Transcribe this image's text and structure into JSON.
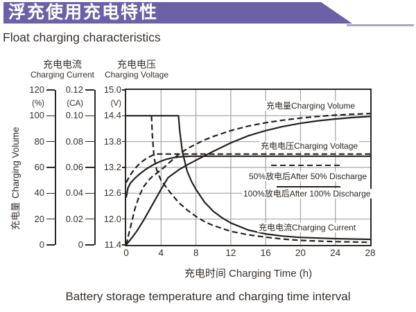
{
  "page": {
    "title_cn": "浮充使用充电特性",
    "title_en": "Float charging characteristics",
    "caption": "Battery storage temperature and charging time interval"
  },
  "colors": {
    "banner": "#6c61a6",
    "banner_underline": "#a8a1cf",
    "curve": "#231f1c",
    "grid": "#a3a3a3",
    "plot_border": "#2b2620",
    "text": "#352f2b"
  },
  "chart_data": {
    "type": "line",
    "title": "浮充使用充电特性 Float charging characteristics",
    "x_axis": {
      "label": "充电时间 Charging Time (h)",
      "min": 0,
      "max": 28,
      "ticks": [
        "0",
        "4",
        "8",
        "12",
        "16",
        "20",
        "24",
        "28"
      ]
    },
    "y_axes": [
      {
        "id": "volume",
        "title_cn": "充电量",
        "title_en": "Charging Volume",
        "unit": "(%)",
        "min": 0,
        "max": 120,
        "ticks": [
          "120",
          "100",
          "80",
          "60",
          "40",
          "20",
          "0"
        ]
      },
      {
        "id": "current",
        "title_cn": "充电电流",
        "title_en": "Charging Current",
        "unit": "(CA)",
        "min": 0,
        "max": 0.12,
        "ticks": [
          "0.12",
          "0.10",
          "0.08",
          "0.06",
          "0.04",
          "0.02",
          "0"
        ]
      },
      {
        "id": "voltage",
        "title_cn": "充电电压",
        "title_en": "Charging Voltage",
        "unit": "(V)",
        "min": 11.4,
        "max": 15.0,
        "ticks": [
          "15.0",
          "14.4",
          "13.8",
          "13.2",
          "12.6",
          "12.0",
          "11.4"
        ]
      }
    ],
    "labels": {
      "charging_volume": "充电量Charging Volume",
      "charging_voltage": "充电电压Charging Voltage",
      "after_50": "50%放电后After 50% Discharge",
      "after_100": "100%放电后After 100% Discharge",
      "charging_current": "充电电流Charging Current"
    },
    "legend_note": "dashed = after 50% discharge, solid = after 100% discharge",
    "series": [
      {
        "name": "charging-volume-after-50-discharge",
        "axis": "volume",
        "style": "dashed",
        "points": [
          [
            0,
            0
          ],
          [
            0.5,
            14
          ],
          [
            1,
            28
          ],
          [
            1.5,
            38
          ],
          [
            2,
            45
          ],
          [
            2.5,
            49.5
          ],
          [
            3,
            53
          ],
          [
            4,
            58
          ],
          [
            5,
            64
          ],
          [
            6,
            70
          ],
          [
            7,
            74.5
          ],
          [
            8,
            78
          ],
          [
            9,
            81.3
          ],
          [
            10,
            84
          ],
          [
            12,
            88.5
          ],
          [
            14,
            92
          ],
          [
            16,
            94.6
          ],
          [
            18,
            96.6
          ],
          [
            20,
            98.2
          ],
          [
            22,
            99.5
          ],
          [
            24,
            100.5
          ],
          [
            26,
            101.2
          ],
          [
            28,
            101.7
          ]
        ]
      },
      {
        "name": "charging-volume-after-100-discharge",
        "axis": "volume",
        "style": "solid",
        "points": [
          [
            0,
            0
          ],
          [
            0.6,
            5
          ],
          [
            1.2,
            10.5
          ],
          [
            2,
            19
          ],
          [
            3,
            31
          ],
          [
            4,
            43
          ],
          [
            4.8,
            52
          ],
          [
            6,
            58
          ],
          [
            7,
            62
          ],
          [
            8,
            65.5
          ],
          [
            9,
            69
          ],
          [
            10,
            72.5
          ],
          [
            12,
            79
          ],
          [
            14,
            84.5
          ],
          [
            16,
            88.5
          ],
          [
            18,
            91.7
          ],
          [
            20,
            94.2
          ],
          [
            22,
            96.1
          ],
          [
            24,
            97.5
          ],
          [
            26,
            98.6
          ],
          [
            28,
            99.5
          ]
        ]
      },
      {
        "name": "charging-voltage-after-50-discharge",
        "axis": "voltage",
        "style": "dashed",
        "points": [
          [
            0,
            12.85
          ],
          [
            0.4,
            13.0
          ],
          [
            0.8,
            13.12
          ],
          [
            1.3,
            13.24
          ],
          [
            1.8,
            13.33
          ],
          [
            2.4,
            13.42
          ],
          [
            3,
            13.48
          ],
          [
            3.6,
            13.51
          ],
          [
            28,
            13.51
          ]
        ]
      },
      {
        "name": "charging-voltage-after-100-discharge",
        "axis": "voltage",
        "style": "solid",
        "points": [
          [
            0,
            12.5
          ],
          [
            0.2,
            12.72
          ],
          [
            0.5,
            12.84
          ],
          [
            1,
            12.95
          ],
          [
            1.5,
            13.04
          ],
          [
            2.2,
            13.15
          ],
          [
            3,
            13.25
          ],
          [
            3.8,
            13.33
          ],
          [
            4.6,
            13.39
          ],
          [
            5.5,
            13.43
          ],
          [
            6.5,
            13.45
          ],
          [
            7.5,
            13.46
          ],
          [
            28,
            13.46
          ]
        ]
      },
      {
        "name": "charging-current-after-50-discharge",
        "axis": "current",
        "style": "dashed",
        "points": [
          [
            2.9,
            0.1
          ],
          [
            3.0,
            0.085
          ],
          [
            3.2,
            0.068
          ],
          [
            3.5,
            0.058
          ],
          [
            4,
            0.05
          ],
          [
            4.5,
            0.0455
          ],
          [
            5,
            0.041
          ],
          [
            6,
            0.033
          ],
          [
            7,
            0.027
          ],
          [
            8,
            0.022
          ],
          [
            9,
            0.018
          ],
          [
            10,
            0.015
          ],
          [
            12,
            0.0105
          ],
          [
            14,
            0.0078
          ],
          [
            16,
            0.006
          ],
          [
            18,
            0.0045
          ],
          [
            20,
            0.0035
          ],
          [
            24,
            0.0025
          ],
          [
            28,
            0.002
          ]
        ]
      },
      {
        "name": "charging-current-after-100-discharge",
        "axis": "current",
        "style": "solid",
        "points": [
          [
            0,
            0.1
          ],
          [
            6.0,
            0.1
          ],
          [
            6.15,
            0.088
          ],
          [
            6.45,
            0.072
          ],
          [
            7,
            0.057
          ],
          [
            7.5,
            0.049
          ],
          [
            8,
            0.043
          ],
          [
            9,
            0.033
          ],
          [
            10,
            0.026
          ],
          [
            11,
            0.021
          ],
          [
            12,
            0.017
          ],
          [
            14,
            0.0115
          ],
          [
            16,
            0.0085
          ],
          [
            18,
            0.0068
          ],
          [
            20,
            0.0058
          ],
          [
            24,
            0.0048
          ],
          [
            28,
            0.0043
          ]
        ]
      }
    ],
    "grid": "on",
    "gridlines_x": [
      4,
      8,
      12,
      16,
      20,
      24
    ],
    "gridlines_voltage": [
      14.4,
      13.8,
      13.2,
      12.6,
      12.0
    ]
  }
}
